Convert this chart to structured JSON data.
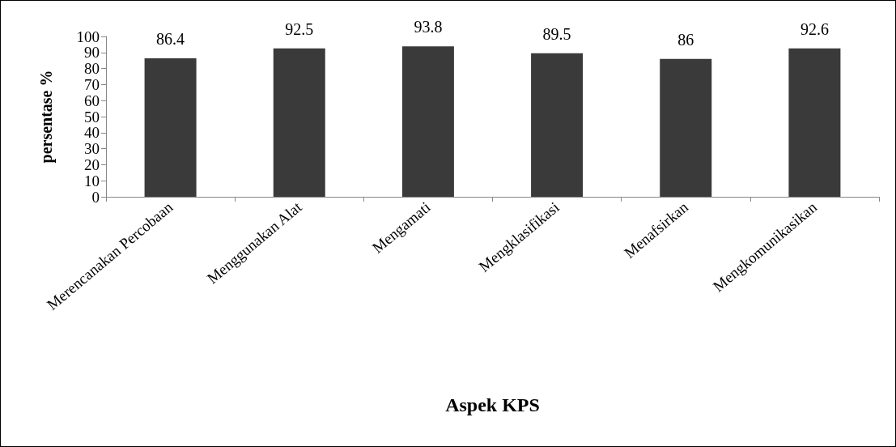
{
  "chart_data": {
    "type": "bar",
    "xlabel": "Aspek KPS",
    "ylabel": "persentase %",
    "categories": [
      "Merencanakan Percobaan",
      "Menggunakan Alat",
      "Mengamati",
      "Mengklasifikasi",
      "Menafsirkan",
      "Mengkomunikasikan"
    ],
    "values": [
      86.4,
      92.5,
      93.8,
      89.5,
      86,
      92.6
    ],
    "color": "#3a3a3a",
    "ylim": [
      0,
      100
    ],
    "yticks": [
      0,
      10,
      20,
      30,
      40,
      50,
      60,
      70,
      80,
      90,
      100
    ],
    "grid": false,
    "data_labels": true
  }
}
